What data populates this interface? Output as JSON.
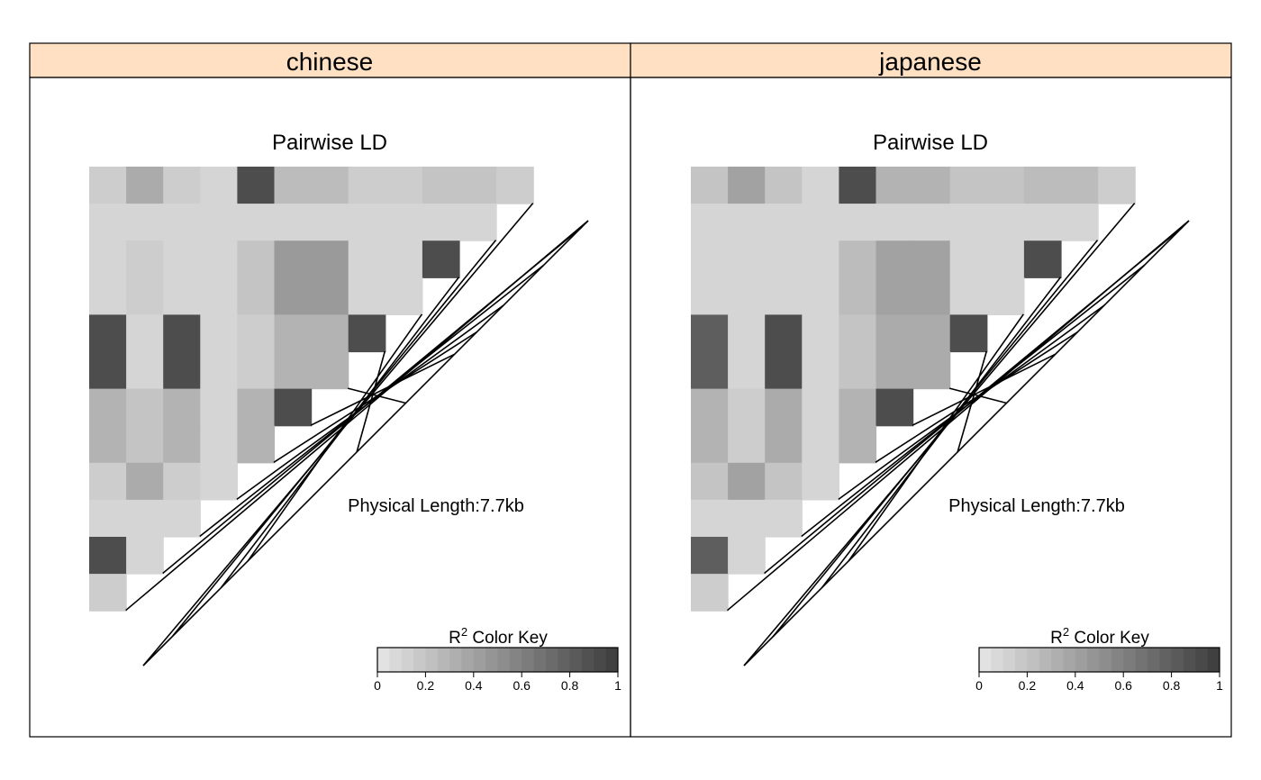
{
  "chart_data": {
    "type": "heatmap",
    "layout": "lattice panels side by side",
    "panels": [
      {
        "strip_label": "chinese",
        "title": "Pairwise LD",
        "annotation": "Physical Length:7.7kb",
        "rows": [
          [
            0.15,
            0.35,
            0.15,
            0.1,
            0.9,
            0.25,
            0.25,
            0.15,
            0.15,
            0.2,
            0.2,
            0.15
          ],
          [
            0.1,
            0.1,
            0.1,
            0.1,
            0.1,
            0.1,
            0.1,
            0.1,
            0.1,
            0.1,
            0.1
          ],
          [
            0.1,
            0.15,
            0.1,
            0.1,
            0.2,
            0.45,
            0.45,
            0.1,
            0.1,
            0.9
          ],
          [
            0.1,
            0.15,
            0.1,
            0.1,
            0.2,
            0.45,
            0.45,
            0.1,
            0.1
          ],
          [
            0.9,
            0.1,
            0.9,
            0.1,
            0.15,
            0.3,
            0.3,
            0.9
          ],
          [
            0.9,
            0.1,
            0.9,
            0.1,
            0.15,
            0.3,
            0.3
          ],
          [
            0.3,
            0.2,
            0.3,
            0.1,
            0.3,
            0.9
          ],
          [
            0.3,
            0.2,
            0.3,
            0.1,
            0.3
          ],
          [
            0.15,
            0.35,
            0.15,
            0.1
          ],
          [
            0.1,
            0.1,
            0.1
          ],
          [
            0.9,
            0.1
          ],
          [
            0.15
          ]
        ]
      },
      {
        "strip_label": "japanese",
        "title": "Pairwise LD",
        "annotation": "Physical Length:7.7kb",
        "rows": [
          [
            0.2,
            0.4,
            0.2,
            0.1,
            0.9,
            0.3,
            0.3,
            0.2,
            0.2,
            0.25,
            0.25,
            0.15
          ],
          [
            0.1,
            0.1,
            0.1,
            0.1,
            0.1,
            0.1,
            0.1,
            0.1,
            0.1,
            0.1,
            0.1
          ],
          [
            0.1,
            0.1,
            0.1,
            0.1,
            0.25,
            0.4,
            0.4,
            0.1,
            0.1,
            0.9
          ],
          [
            0.1,
            0.1,
            0.1,
            0.1,
            0.25,
            0.4,
            0.4,
            0.1,
            0.1
          ],
          [
            0.8,
            0.1,
            0.9,
            0.1,
            0.2,
            0.35,
            0.35,
            0.9
          ],
          [
            0.8,
            0.1,
            0.9,
            0.1,
            0.2,
            0.35,
            0.35
          ],
          [
            0.3,
            0.15,
            0.35,
            0.1,
            0.3,
            0.9
          ],
          [
            0.3,
            0.15,
            0.35,
            0.1,
            0.3
          ],
          [
            0.2,
            0.4,
            0.2,
            0.1
          ],
          [
            0.1,
            0.1,
            0.1
          ],
          [
            0.8,
            0.1
          ],
          [
            0.15
          ]
        ]
      }
    ],
    "color_key": {
      "label_base": "R",
      "label_superscript": "2",
      "label_rest": " Color Key",
      "range": [
        0,
        1
      ],
      "ticks": [
        "0",
        "0.2",
        "0.4",
        "0.6",
        "0.8",
        "1"
      ],
      "color_low": "#e6e6e6",
      "color_high": "#3c3c3c",
      "steps": 20
    },
    "strip_color": "#ffe0c3"
  }
}
